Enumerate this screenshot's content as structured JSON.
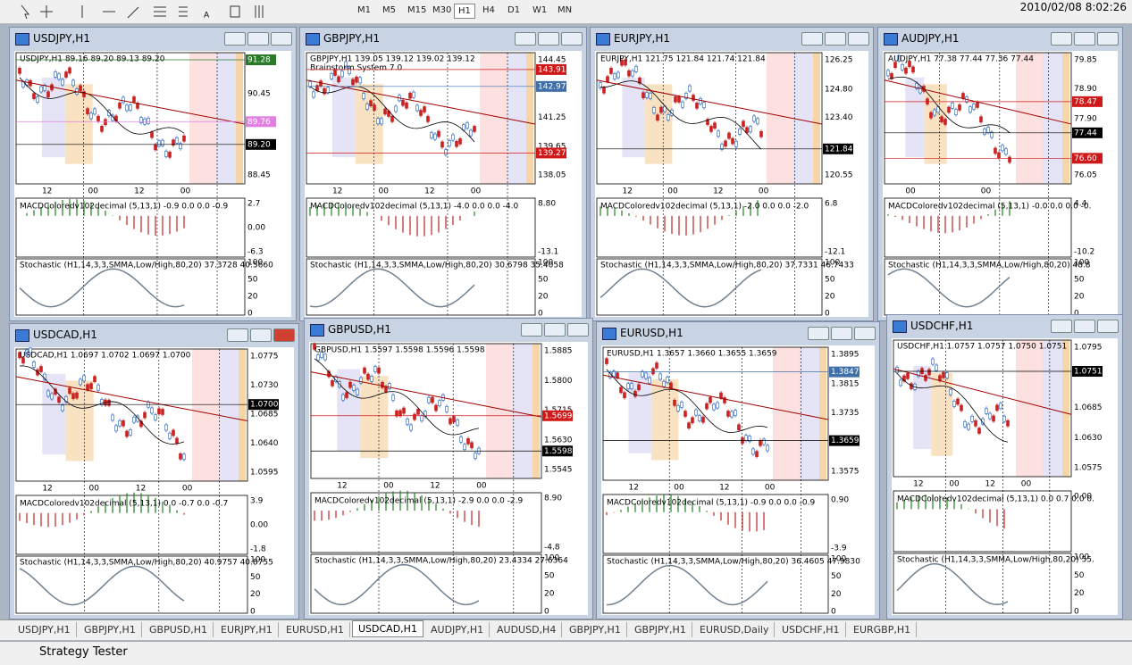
{
  "toolbar": {
    "timeframes": [
      "M1",
      "M5",
      "M15",
      "M30",
      "H1",
      "H4",
      "D1",
      "W1",
      "MN"
    ],
    "datetime": "2010/02/08 8:02:26"
  },
  "windows": [
    {
      "title": "USDJPY,H1",
      "info": "USDJPY,H1 89.16 89.20 89.13 89.20",
      "prices": [
        {
          "text": "91.28",
          "box": "green"
        },
        {
          "text": "90.45"
        },
        {
          "text": "89.76",
          "box": "pink"
        },
        {
          "text": "89.20",
          "box": "black"
        },
        {
          "text": "88.45"
        }
      ],
      "times": [
        "12",
        "00",
        "12",
        "00"
      ],
      "macd": "MACDColoredv102decimal (5,13,1) -0.9 0.0 0.0 -0.9",
      "macd_scale": [
        "2.7",
        "0.00",
        "-6.3"
      ],
      "stoch": "Stochastic (H1,14,3,3,SMMA,Low/High,80,20) 37.3728 40.5660",
      "stoch_scale": [
        "100",
        "50",
        "20",
        "0"
      ]
    },
    {
      "title": "GBPJPY,H1",
      "info": "GBPJPY,H1 139.05 139.12 139.02 139.12",
      "sub": "Brainstorm System 7.0",
      "prices": [
        {
          "text": "144.45"
        },
        {
          "text": "143.91",
          "box": "red"
        },
        {
          "text": "142.97",
          "box": "blue"
        },
        {
          "text": "141.25"
        },
        {
          "text": "139.65"
        },
        {
          "text": "139.27",
          "box": "red"
        },
        {
          "text": "138.05"
        }
      ],
      "times": [
        "12",
        "00",
        "12",
        "00"
      ],
      "macd": "MACDColoredv102decimal (5,13,1) -4.0 0.0 0.0 -4.0",
      "macd_scale": [
        "8.80",
        "-13.1"
      ],
      "stoch": "Stochastic (H1,14,3,3,SMMA,Low/High,80,20) 30.6798 35.4058",
      "stoch_scale": [
        "100",
        "50",
        "20",
        "0"
      ]
    },
    {
      "title": "EURJPY,H1",
      "info": "EURJPY,H1 121.75 121.84 121.74 121.84",
      "prices": [
        {
          "text": "126.25"
        },
        {
          "text": "124.80"
        },
        {
          "text": "123.40"
        },
        {
          "text": "121.84",
          "box": "black"
        },
        {
          "text": "120.55"
        }
      ],
      "times": [
        "12",
        "00",
        "12",
        "00"
      ],
      "macd": "MACDColoredv102decimal (5,13,1) -2.0 0.0 0.0 -2.0",
      "macd_scale": [
        "6.8",
        "-12.1"
      ],
      "stoch": "Stochastic (H1,14,3,3,SMMA,Low/High,80,20) 37.7331 46.7433",
      "stoch_scale": [
        "100",
        "50",
        "20",
        "0"
      ]
    },
    {
      "title": "AUDJPY,H1",
      "info": "AUDJPY,H1 77.38 77.44 77.36 77.44",
      "prices": [
        {
          "text": "79.85"
        },
        {
          "text": "78.90"
        },
        {
          "text": "78.47",
          "box": "red"
        },
        {
          "text": "77.90"
        },
        {
          "text": "77.44",
          "box": "black"
        },
        {
          "text": "76.60",
          "box": "red"
        },
        {
          "text": "76.05"
        }
      ],
      "times": [
        "00",
        "00"
      ],
      "macd": "MACDColoredv102decimal (5,13,1) -0.0 0.0 0.0 -0.",
      "macd_scale": [
        "4.4",
        "-10.2"
      ],
      "stoch": "Stochastic (H1,14,3,3,SMMA,Low/High,80,20) 48.8",
      "stoch_scale": [
        "100",
        "50",
        "20",
        "0"
      ]
    },
    {
      "title": "USDCAD,H1",
      "info": "USDCAD,H1 1.0697 1.0702 1.0697 1.0700",
      "prices": [
        {
          "text": "1.0775"
        },
        {
          "text": "1.0730"
        },
        {
          "text": "1.0700",
          "box": "black"
        },
        {
          "text": "1.0685"
        },
        {
          "text": "1.0640"
        },
        {
          "text": "1.0595"
        }
      ],
      "times": [
        "12",
        "00",
        "12",
        "00"
      ],
      "macd": "MACDColoredv102decimal (5,13,1) 0.0 -0.7 0.0 -0.7",
      "macd_scale": [
        "3.9",
        "0.00",
        "-1.8"
      ],
      "stoch": "Stochastic (H1,14,3,3,SMMA,Low/High,80,20) 40.9757 40.8755",
      "stoch_scale": [
        "100",
        "50",
        "20",
        "0"
      ]
    },
    {
      "title": "GBPUSD,H1",
      "info": "GBPUSD,H1 1.5597 1.5598 1.5596 1.5598",
      "prices": [
        {
          "text": "1.5885"
        },
        {
          "text": "1.5800"
        },
        {
          "text": "1.5715"
        },
        {
          "text": "1.5699",
          "box": "red"
        },
        {
          "text": "1.5630"
        },
        {
          "text": "1.5598",
          "box": "black"
        },
        {
          "text": "1.5545"
        }
      ],
      "times": [
        "12",
        "00",
        "12",
        "00"
      ],
      "macd": "MACDColoredv102decimal (5,13,1) -2.9 0.0 0.0 -2.9",
      "macd_scale": [
        "8.90",
        "-4.8"
      ],
      "stoch": "Stochastic (H1,14,3,3,SMMA,Low/High,80,20) 23.4334 27.6364",
      "stoch_scale": [
        "100",
        "50",
        "20",
        "0"
      ]
    },
    {
      "title": "EURUSD,H1",
      "info": "EURUSD,H1 1.3657 1.3660 1.3655 1.3659",
      "prices": [
        {
          "text": "1.3895"
        },
        {
          "text": "1.3847",
          "box": "blue"
        },
        {
          "text": "1.3815"
        },
        {
          "text": "1.3735"
        },
        {
          "text": "1.3659",
          "box": "black"
        },
        {
          "text": "1.3575"
        }
      ],
      "times": [
        "12",
        "00",
        "12",
        "00"
      ],
      "macd": "MACDColoredv102decimal (5,13,1) -0.9 0.0 0.0 -0.9",
      "macd_scale": [
        "0.90",
        "-3.9"
      ],
      "stoch": "Stochastic (H1,14,3,3,SMMA,Low/High,80,20) 36.4605 47.9830",
      "stoch_scale": [
        "100",
        "50",
        "20",
        "0"
      ]
    },
    {
      "title": "USDCHF,H1",
      "info": "USDCHF,H1 1.0757 1.0757 1.0750 1.0751",
      "prices": [
        {
          "text": "1.0795"
        },
        {
          "text": "1.0751",
          "box": "black"
        },
        {
          "text": "1.0685"
        },
        {
          "text": "1.0630"
        },
        {
          "text": "1.0575"
        }
      ],
      "times": [
        "12",
        "00",
        "12",
        "00"
      ],
      "macd": "MACDColoredv102decimal (5,13,1) 0.0 0.7 0.0 0.",
      "macd_scale": [
        "0.00"
      ],
      "stoch": "Stochastic (H1,14,3,3,SMMA,Low/High,80,20) 55.",
      "stoch_scale": [
        "100",
        "50",
        "20",
        "0"
      ]
    }
  ],
  "tabs": [
    "USDJPY,H1",
    "GBPJPY,H1",
    "GBPUSD,H1",
    "EURJPY,H1",
    "EURUSD,H1",
    "USDCAD,H1",
    "AUDJPY,H1",
    "AUDUSD,H4",
    "GBPJPY,H1",
    "GBPJPY,H1",
    "EURUSD,Daily",
    "USDCHF,H1",
    "EURGBP,H1"
  ],
  "active_tab": 5,
  "footer": "Strategy Tester"
}
